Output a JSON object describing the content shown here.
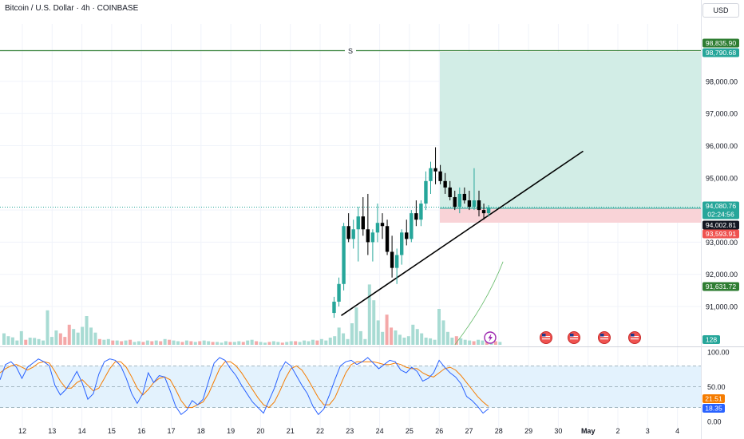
{
  "header": {
    "title": "Bitcoin / U.S. Dollar · 4h · COINBASE",
    "currency": "USD"
  },
  "colors": {
    "up": "#26a69a",
    "down": "#000000",
    "vol_up": "#a8dbd3",
    "vol_down": "#f4a8a8",
    "target_zone": "#d2ede6",
    "stop_zone": "#f9d3d7",
    "resistance": "#2e7d32",
    "trendline": "#000000",
    "stoch_k": "#2962ff",
    "stoch_d": "#f57c00",
    "stoch_band": "#e3f2fd",
    "ma": "#66bb6a",
    "badge_green": "#2e7d32",
    "badge_teal": "#26a69a",
    "badge_dark": "#131722",
    "badge_red": "#ef5350",
    "badge_orange": "#f57c00",
    "badge_blue": "#2962ff"
  },
  "chart_data": {
    "type": "candlestick",
    "title": "Bitcoin / U.S. Dollar · 4h · COINBASE",
    "y_range": [
      90250,
      99250
    ],
    "y_ticks": [
      "91,000.00",
      "92,000.00",
      "93,000.00",
      "94,000.00",
      "95,000.00",
      "96,000.00",
      "97,000.00",
      "98,000.00"
    ],
    "x_ticks": [
      "12",
      "13",
      "14",
      "15",
      "16",
      "17",
      "18",
      "19",
      "20",
      "21",
      "22",
      "23",
      "24",
      "25",
      "26",
      "27",
      "28",
      "29",
      "30",
      "May",
      "2",
      "3",
      "4"
    ],
    "ohlc": [
      [
        90800,
        91300,
        90650,
        91150
      ],
      [
        91150,
        91900,
        91000,
        91700
      ],
      [
        91700,
        93600,
        91500,
        93500
      ],
      [
        93500,
        93900,
        93000,
        93100
      ],
      [
        93100,
        93700,
        92800,
        93400
      ],
      [
        93400,
        94100,
        92400,
        93800
      ],
      [
        93800,
        94400,
        93200,
        93400
      ],
      [
        93400,
        94500,
        92600,
        93000
      ],
      [
        93000,
        93400,
        92400,
        93300
      ],
      [
        93300,
        94200,
        93000,
        93600
      ],
      [
        93600,
        93900,
        93100,
        93500
      ],
      [
        93500,
        93700,
        92600,
        92700
      ],
      [
        92700,
        93200,
        91900,
        92200
      ],
      [
        92200,
        92800,
        91700,
        92600
      ],
      [
        92600,
        93400,
        92300,
        93300
      ],
      [
        93300,
        93700,
        92900,
        93100
      ],
      [
        93100,
        94000,
        93000,
        93900
      ],
      [
        93900,
        94300,
        93500,
        93700
      ],
      [
        93700,
        94300,
        93500,
        94200
      ],
      [
        94200,
        95200,
        94000,
        94900
      ],
      [
        94900,
        95500,
        94500,
        95300
      ],
      [
        95300,
        95950,
        94800,
        95200
      ],
      [
        95200,
        95400,
        94800,
        94900
      ],
      [
        94900,
        95150,
        94500,
        94700
      ],
      [
        94700,
        94900,
        94300,
        94400
      ],
      [
        94400,
        94600,
        94000,
        94100
      ],
      [
        94100,
        94700,
        93900,
        94500
      ],
      [
        94500,
        94700,
        94200,
        94300
      ],
      [
        94300,
        94600,
        94000,
        94100
      ],
      [
        94100,
        95300,
        94000,
        94300
      ],
      [
        94300,
        94600,
        93800,
        94000
      ],
      [
        94000,
        94200,
        93700,
        93900
      ],
      [
        93900,
        94150,
        93800,
        94080
      ]
    ],
    "volume": [
      [
        "up",
        0.8
      ],
      [
        "up",
        0.6
      ],
      [
        "up",
        0.52
      ],
      [
        "up",
        0.3
      ],
      [
        "up",
        0.95
      ],
      [
        "down",
        0.35
      ],
      [
        "up",
        0.5
      ],
      [
        "up",
        0.48
      ],
      [
        "up",
        0.4
      ],
      [
        "up",
        0.3
      ],
      [
        "up",
        2.4
      ],
      [
        "up",
        0.55
      ],
      [
        "up",
        1.0
      ],
      [
        "down",
        0.8
      ],
      [
        "down",
        0.55
      ],
      [
        "down",
        1.4
      ],
      [
        "up",
        1.1
      ],
      [
        "up",
        0.85
      ],
      [
        "up",
        1.25
      ],
      [
        "up",
        2.0
      ],
      [
        "up",
        1.2
      ],
      [
        "up",
        0.85
      ],
      [
        "down",
        0.4
      ],
      [
        "up",
        0.35
      ],
      [
        "up",
        0.4
      ],
      [
        "down",
        0.3
      ],
      [
        "up",
        0.3
      ],
      [
        "down",
        0.25
      ],
      [
        "up",
        0.3
      ],
      [
        "down",
        0.35
      ],
      [
        "up",
        0.2
      ],
      [
        "up",
        0.25
      ],
      [
        "down",
        0.2
      ],
      [
        "up",
        0.3
      ],
      [
        "down",
        0.25
      ],
      [
        "up",
        0.3
      ],
      [
        "down",
        0.25
      ],
      [
        "up",
        0.4
      ],
      [
        "down",
        0.35
      ],
      [
        "up",
        0.3
      ],
      [
        "up",
        0.25
      ],
      [
        "down",
        0.2
      ],
      [
        "up",
        0.3
      ],
      [
        "down",
        0.25
      ],
      [
        "up",
        0.2
      ],
      [
        "down",
        0.25
      ],
      [
        "up",
        0.3
      ],
      [
        "up",
        0.25
      ],
      [
        "down",
        0.2
      ],
      [
        "up",
        0.2
      ],
      [
        "up",
        0.15
      ],
      [
        "up",
        0.25
      ],
      [
        "down",
        0.2
      ],
      [
        "up",
        0.2
      ],
      [
        "up",
        0.25
      ],
      [
        "down",
        0.2
      ],
      [
        "up",
        0.3
      ],
      [
        "up",
        0.35
      ],
      [
        "down",
        0.25
      ],
      [
        "up",
        0.2
      ],
      [
        "up",
        0.15
      ],
      [
        "down",
        0.2
      ],
      [
        "up",
        0.25
      ],
      [
        "up",
        0.2
      ],
      [
        "down",
        0.15
      ],
      [
        "up",
        0.2
      ],
      [
        "up",
        0.25
      ],
      [
        "down",
        0.25
      ],
      [
        "up",
        0.2
      ],
      [
        "up",
        0.3
      ],
      [
        "up",
        0.25
      ],
      [
        "up",
        0.35
      ],
      [
        "down",
        0.3
      ],
      [
        "up",
        0.4
      ],
      [
        "up",
        0.3
      ],
      [
        "up",
        0.5
      ],
      [
        "up",
        0.6
      ],
      [
        "up",
        1.2
      ],
      [
        "up",
        0.8
      ],
      [
        "up",
        0.4
      ],
      [
        "up",
        1.5
      ],
      [
        "up",
        2.6
      ],
      [
        "up",
        0.95
      ],
      [
        "up",
        0.4
      ],
      [
        "up",
        4.2
      ],
      [
        "up",
        3.1
      ],
      [
        "up",
        1.7
      ],
      [
        "up",
        0.9
      ],
      [
        "down",
        2.1
      ],
      [
        "down",
        1.2
      ],
      [
        "up",
        1.0
      ],
      [
        "up",
        0.7
      ],
      [
        "up",
        0.5
      ],
      [
        "up",
        0.6
      ],
      [
        "up",
        1.4
      ],
      [
        "up",
        1.1
      ],
      [
        "up",
        0.8
      ],
      [
        "up",
        0.5
      ],
      [
        "up",
        0.45
      ],
      [
        "up",
        0.35
      ],
      [
        "up",
        2.5
      ],
      [
        "up",
        1.7
      ],
      [
        "up",
        0.9
      ],
      [
        "up",
        0.5
      ],
      [
        "down",
        0.6
      ],
      [
        "up",
        0.45
      ],
      [
        "up",
        0.35
      ],
      [
        "up",
        0.3
      ],
      [
        "down",
        0.25
      ],
      [
        "up",
        0.35
      ],
      [
        "up",
        0.3
      ],
      [
        "down",
        0.25
      ],
      [
        "up",
        0.2
      ],
      [
        "down",
        0.25
      ],
      [
        "up",
        0.2
      ]
    ],
    "volume_label": "128",
    "resistance_label": "S",
    "trendline": {
      "from": [
        0,
        90720
      ],
      "to": [
        40,
        95830
      ]
    },
    "ma_line": {
      "from": [
        25,
        90250
      ],
      "to": [
        33,
        91600
      ]
    },
    "price_labels": [
      {
        "text": "98,835.90",
        "color": "badge_green"
      },
      {
        "text": "98,790.68",
        "color": "badge_teal"
      },
      {
        "text": "94,080.76",
        "sub": "02:24:56",
        "color": "badge_teal"
      },
      {
        "text": "94,002.81",
        "color": "badge_dark"
      },
      {
        "text": "93,593.91",
        "color": "badge_red"
      },
      {
        "text": "91,631.72",
        "color": "badge_green"
      }
    ],
    "stoch": {
      "y_range": [
        0,
        100
      ],
      "y_ticks": [
        "100.00",
        "50.00",
        "0.00"
      ],
      "k": [
        60,
        82,
        86,
        78,
        62,
        78,
        84,
        90,
        86,
        80,
        52,
        38,
        46,
        58,
        72,
        55,
        32,
        40,
        68,
        86,
        90,
        88,
        80,
        62,
        40,
        26,
        40,
        70,
        56,
        66,
        64,
        44,
        22,
        10,
        16,
        30,
        24,
        32,
        58,
        84,
        92,
        88,
        76,
        66,
        52,
        40,
        28,
        20,
        12,
        30,
        48,
        72,
        86,
        80,
        66,
        52,
        40,
        22,
        10,
        18,
        38,
        60,
        80,
        86,
        88,
        82,
        86,
        92,
        84,
        76,
        82,
        88,
        86,
        74,
        70,
        78,
        72,
        58,
        62,
        70,
        88,
        78,
        70,
        64,
        54,
        36,
        30,
        22,
        12,
        18.35
      ],
      "d": [
        70,
        76,
        80,
        82,
        78,
        74,
        78,
        84,
        86,
        84,
        72,
        58,
        48,
        48,
        56,
        60,
        52,
        44,
        48,
        62,
        76,
        86,
        86,
        78,
        64,
        48,
        38,
        46,
        56,
        62,
        64,
        60,
        46,
        30,
        20,
        20,
        24,
        28,
        40,
        58,
        76,
        86,
        86,
        80,
        70,
        58,
        46,
        34,
        24,
        20,
        28,
        44,
        62,
        76,
        80,
        74,
        62,
        48,
        34,
        24,
        24,
        34,
        52,
        70,
        82,
        86,
        86,
        86,
        86,
        84,
        82,
        82,
        84,
        82,
        78,
        76,
        76,
        70,
        66,
        64,
        70,
        76,
        78,
        74,
        66,
        56,
        46,
        36,
        28,
        21.51
      ],
      "k_label": "18.35",
      "d_label": "21.51",
      "band": [
        20,
        80
      ]
    }
  }
}
